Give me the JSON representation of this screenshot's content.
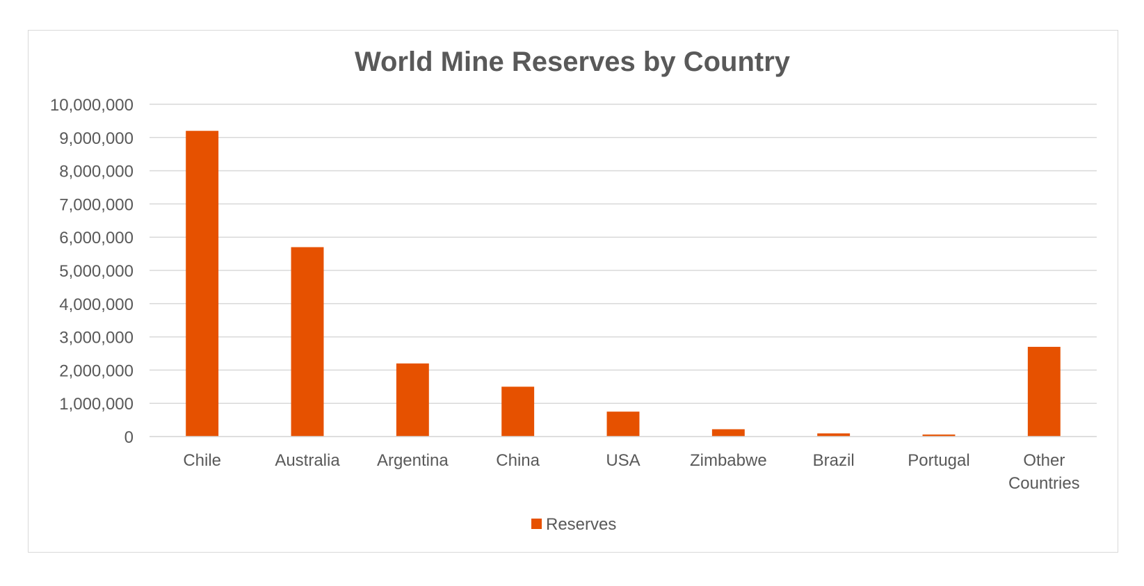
{
  "chart_data": {
    "type": "bar",
    "title": "World Mine Reserves by Country",
    "xlabel": "",
    "ylabel": "",
    "categories": [
      "Chile",
      "Australia",
      "Argentina",
      "China",
      "USA",
      "Zimbabwe",
      "Brazil",
      "Portugal",
      "Other Countries"
    ],
    "series": [
      {
        "name": "Reserves",
        "values": [
          9200000,
          5700000,
          2200000,
          1500000,
          750000,
          220000,
          95000,
          60000,
          2700000
        ]
      }
    ],
    "ylim": [
      0,
      10000000
    ],
    "yticks": [
      "0",
      "1,000,000",
      "2,000,000",
      "3,000,000",
      "4,000,000",
      "5,000,000",
      "6,000,000",
      "7,000,000",
      "8,000,000",
      "9,000,000",
      "10,000,000"
    ],
    "grid": true,
    "legend_position": "bottom",
    "bar_color": "#E65100",
    "grid_color": "#d9d9d9",
    "text_color": "#595959"
  }
}
